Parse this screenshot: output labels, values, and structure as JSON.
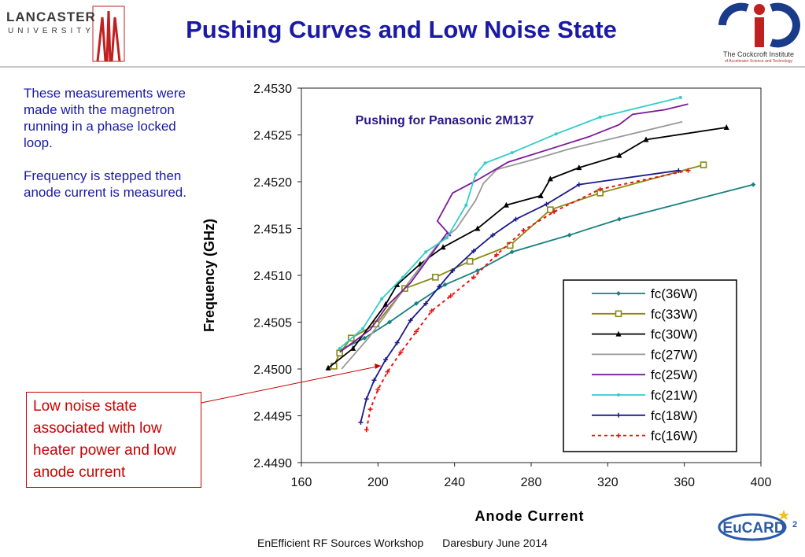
{
  "title": "Pushing Curves and Low Noise State",
  "logos": {
    "left": {
      "name": "LANCASTER",
      "sub": "UNIVERSITY"
    },
    "right": {
      "name": "The Cockcroft Institute",
      "sub": "of Accelerator Science and Technology"
    },
    "bottom": {
      "name": "EuCARD",
      "sup": "2"
    }
  },
  "notes": [
    "These measurements were made with the magnetron running in a phase locked loop.",
    "Frequency is stepped then anode current is measured."
  ],
  "callout": "Low noise state associated with low heater power and low anode current",
  "footer": {
    "left": "EnEfficient RF Sources Workshop",
    "right": "Daresbury June 2014"
  },
  "colors": {
    "title": "#1a1aa6",
    "notes": "#1a1aa6",
    "callout": "#cc0000",
    "annotation": "#2a1a8a"
  },
  "chart_data": {
    "type": "line",
    "annotation": "Pushing for Panasonic 2M137",
    "xlabel": "Anode Current",
    "ylabel": "Frequency (GHz)",
    "xlim": [
      160,
      400
    ],
    "ylim": [
      2.449,
      2.453
    ],
    "xticks": [
      "160",
      "200",
      "240",
      "280",
      "320",
      "360",
      "400"
    ],
    "yticks": [
      "2.4490",
      "2.4495",
      "2.4500",
      "2.4505",
      "2.4510",
      "2.4515",
      "2.4520",
      "2.4525",
      "2.4530"
    ],
    "legend_position": "bottom-right",
    "grid": false,
    "series": [
      {
        "name": "fc(36W)",
        "color": "#1a8080",
        "dash": false,
        "marker": "diamond",
        "x": [
          180,
          193,
          206,
          220,
          235,
          252,
          270,
          300,
          326,
          396
        ],
        "y": [
          2.4502,
          2.45033,
          2.4505,
          2.4507,
          2.4509,
          2.45105,
          2.45125,
          2.45143,
          2.4516,
          2.45197
        ]
      },
      {
        "name": "fc(33W)",
        "color": "#8a8a10",
        "dash": false,
        "marker": "square",
        "x": [
          177,
          180,
          186,
          199,
          214,
          230,
          248,
          269,
          290,
          316,
          370
        ],
        "y": [
          2.45003,
          2.45017,
          2.45033,
          2.45048,
          2.45086,
          2.45098,
          2.45115,
          2.45132,
          2.4517,
          2.45188,
          2.45218
        ]
      },
      {
        "name": "fc(30W)",
        "color": "#000000",
        "dash": false,
        "marker": "triangle",
        "x": [
          174,
          187,
          204,
          210,
          222,
          234,
          252,
          267,
          285,
          290,
          305,
          326,
          340,
          382
        ],
        "y": [
          2.45001,
          2.45022,
          2.45069,
          2.4509,
          2.45112,
          2.4513,
          2.4515,
          2.45175,
          2.45185,
          2.45203,
          2.45215,
          2.45228,
          2.45245,
          2.45258
        ]
      },
      {
        "name": "fc(27W)",
        "color": "#999999",
        "dash": false,
        "marker": "none",
        "x": [
          181,
          195,
          203,
          218,
          232,
          241,
          251,
          255,
          262,
          280,
          300,
          320,
          359
        ],
        "y": [
          2.45,
          2.45033,
          2.45055,
          2.45098,
          2.45135,
          2.4515,
          2.4518,
          2.45198,
          2.45213,
          2.45223,
          2.45235,
          2.45245,
          2.45264
        ]
      },
      {
        "name": "fc(25W)",
        "color": "#7a1a9a",
        "dash": false,
        "marker": "none",
        "x": [
          180,
          196,
          205,
          217,
          236,
          238,
          231,
          239,
          252,
          268,
          290,
          310,
          326,
          333,
          350,
          362
        ],
        "y": [
          2.45018,
          2.45042,
          2.45068,
          2.45092,
          2.45145,
          2.45142,
          2.45158,
          2.45188,
          2.45202,
          2.45221,
          2.45235,
          2.45248,
          2.45261,
          2.45272,
          2.45277,
          2.45283
        ]
      },
      {
        "name": "fc(21W)",
        "color": "#33cccc",
        "dash": false,
        "marker": "dot",
        "x": [
          180,
          192,
          202,
          213,
          225,
          236,
          246,
          251,
          256,
          270,
          293,
          316,
          358
        ],
        "y": [
          2.45022,
          2.45043,
          2.45075,
          2.45098,
          2.45125,
          2.4514,
          2.45175,
          2.45208,
          2.4522,
          2.45231,
          2.45251,
          2.45269,
          2.4529
        ]
      },
      {
        "name": "fc(18W)",
        "color": "#1a1a8a",
        "dash": false,
        "marker": "plus",
        "x": [
          191,
          194,
          198,
          204,
          210,
          217,
          225,
          232,
          239,
          250,
          260,
          272,
          288,
          305,
          357
        ],
        "y": [
          2.44943,
          2.44968,
          2.44988,
          2.4501,
          2.45028,
          2.45052,
          2.4507,
          2.45088,
          2.45105,
          2.45126,
          2.45143,
          2.4516,
          2.45176,
          2.45197,
          2.45212
        ]
      },
      {
        "name": "fc(16W)",
        "color": "#ee1111",
        "dash": true,
        "marker": "plus",
        "x": [
          194,
          196,
          200,
          205,
          212,
          220,
          228,
          238,
          250,
          262,
          276,
          292,
          316,
          362
        ],
        "y": [
          2.44935,
          2.44957,
          2.44978,
          2.44997,
          2.45018,
          2.4504,
          2.45062,
          2.45078,
          2.45098,
          2.45122,
          2.45148,
          2.45168,
          2.45192,
          2.45212
        ]
      }
    ]
  }
}
